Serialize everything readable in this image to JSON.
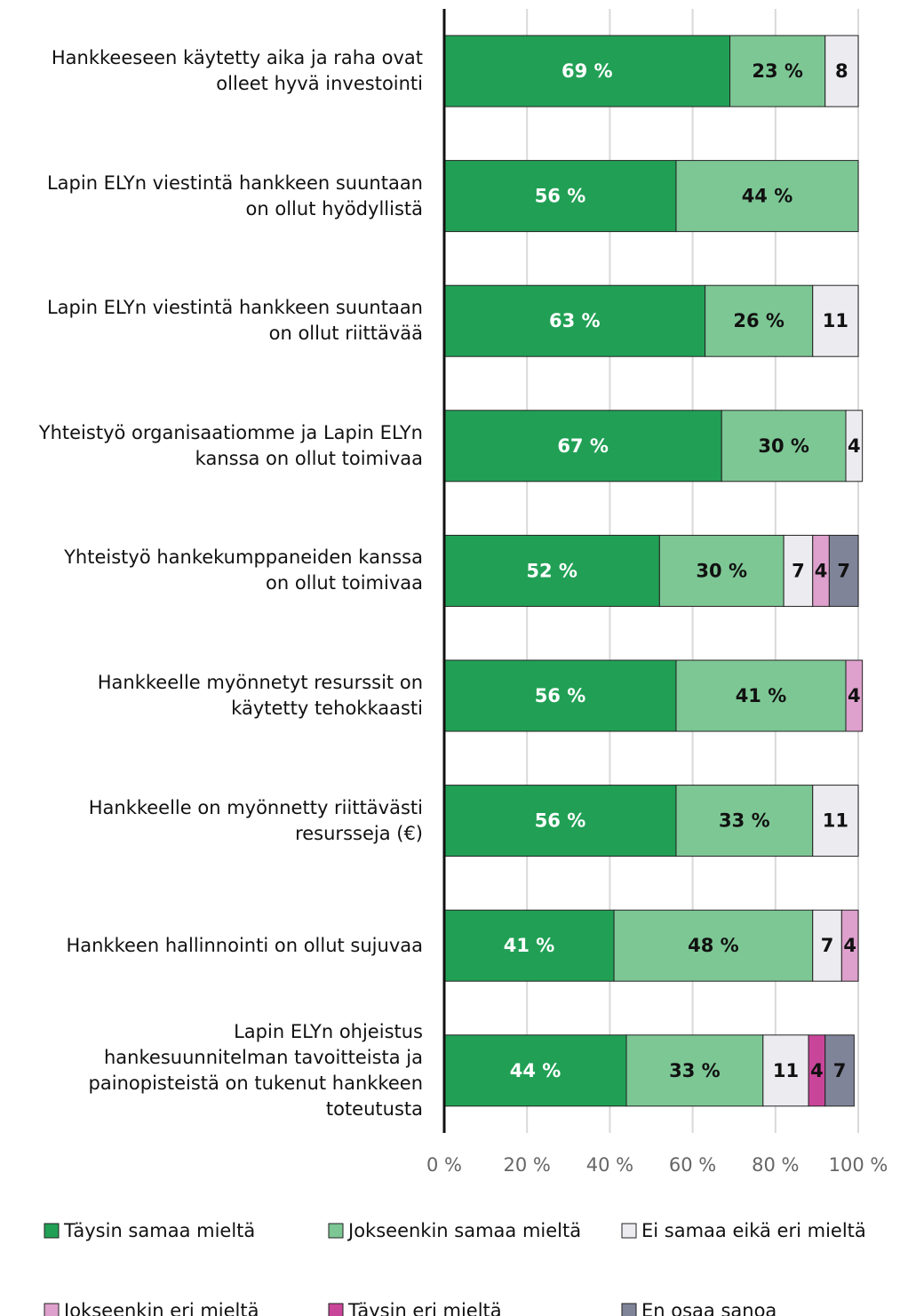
{
  "chart_data": {
    "type": "stacked-barh",
    "categories": [
      "Hankkeeseen käytetty aika ja raha ovat\nolleet hyvä investointi",
      "Lapin ELYn viestintä hankkeen suuntaan\non ollut hyödyllistä",
      "Lapin ELYn viestintä hankkeen suuntaan\non ollut riittävää",
      "Yhteistyö organisaatiomme ja Lapin ELYn\nkanssa on ollut toimivaa",
      "Yhteistyö hankekumppaneiden kanssa\non ollut toimivaa",
      "Hankkeelle myönnetyt resurssit on\nkäytetty tehokkaasti",
      "Hankkeelle on myönnetty riittävästi\nresursseja (€)",
      "Hankkeen hallinnointi on ollut sujuvaa",
      "Lapin ELYn ohjeistus\nhankesuunnitelman tavoitteista ja\npainopisteistä on tukenut hankkeen\ntoteutusta"
    ],
    "series": [
      {
        "name": "Täysin samaa mieltä",
        "color": "#21a055",
        "label_color": "#ffffff",
        "values": [
          69,
          56,
          63,
          67,
          52,
          56,
          56,
          41,
          44
        ],
        "value_labels": [
          "69 %",
          "56 %",
          "63 %",
          "67 %",
          "52 %",
          "56 %",
          "56 %",
          "41 %",
          "44 %"
        ]
      },
      {
        "name": "Jokseenkin samaa mieltä",
        "color": "#7dc795",
        "label_color": "#111111",
        "values": [
          23,
          44,
          26,
          30,
          30,
          41,
          33,
          48,
          33
        ],
        "value_labels": [
          "23 %",
          "44 %",
          "26 %",
          "30 %",
          "30 %",
          "41 %",
          "33 %",
          "48 %",
          "33 %"
        ]
      },
      {
        "name": "Ei samaa eikä eri mieltä",
        "color": "#ecebf0",
        "label_color": "#111111",
        "values": [
          8,
          null,
          11,
          4,
          7,
          null,
          11,
          7,
          11
        ]
      },
      {
        "name": "Jokseenkin eri mieltä",
        "color": "#dea0cc",
        "label_color": "#111111",
        "values": [
          null,
          null,
          null,
          null,
          4,
          4,
          null,
          4,
          null
        ]
      },
      {
        "name": "Täysin eri mieltä",
        "color": "#c9459a",
        "label_color": "#111111",
        "values": [
          null,
          null,
          null,
          null,
          null,
          null,
          null,
          null,
          4
        ]
      },
      {
        "name": "En osaa sanoa",
        "color": "#7f8499",
        "label_color": "#111111",
        "values": [
          null,
          null,
          null,
          null,
          7,
          null,
          null,
          null,
          7
        ]
      }
    ],
    "xlim": [
      0,
      100
    ],
    "xticks": [
      {
        "value": 0,
        "label": "0 %"
      },
      {
        "value": 20,
        "label": "20 %"
      },
      {
        "value": 40,
        "label": "40 %"
      },
      {
        "value": 60,
        "label": "60 %"
      },
      {
        "value": 80,
        "label": "80 %"
      },
      {
        "value": 100,
        "label": "100 %"
      }
    ],
    "grid": true,
    "legend": "bottom"
  }
}
